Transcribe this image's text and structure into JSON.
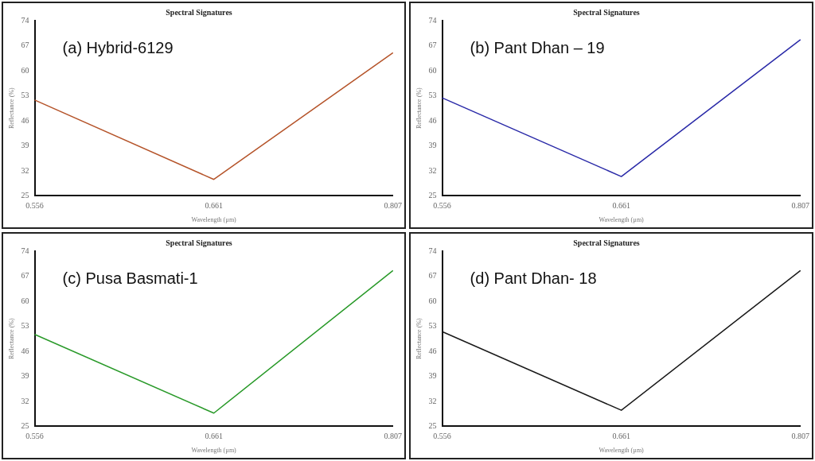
{
  "chart_data": [
    {
      "type": "line",
      "title": "Spectral Signatures",
      "xlabel": "Wavelength (µm)",
      "ylabel": "Reflectance (%)",
      "annotations": [
        "(a) Hybrid-6129"
      ],
      "categories": [
        "0.556",
        "0.661",
        "0.807"
      ],
      "series": [
        {
          "color": "#b5542a",
          "values": [
            51.8,
            29.6,
            65.0
          ]
        }
      ],
      "ylim": [
        25,
        74
      ],
      "yticks": [
        25,
        32,
        39,
        46,
        53,
        60,
        67,
        74
      ],
      "grid": false,
      "legend": false,
      "marker": "none",
      "line_style": "solid"
    },
    {
      "type": "line",
      "title": "Spectral Signatures",
      "xlabel": "Wavelength (µm)",
      "ylabel": "Reflectance (%)",
      "annotations": [
        "(b) Pant Dhan – 19"
      ],
      "categories": [
        "0.556",
        "0.661",
        "0.807"
      ],
      "series": [
        {
          "color": "#2a2aa8",
          "values": [
            52.4,
            30.4,
            68.7
          ]
        }
      ],
      "ylim": [
        25,
        74
      ],
      "yticks": [
        25,
        32,
        39,
        46,
        53,
        60,
        67,
        74
      ],
      "grid": false,
      "legend": false,
      "marker": "none",
      "line_style": "solid"
    },
    {
      "type": "line",
      "title": "Spectral Signatures",
      "xlabel": "Wavelength (µm)",
      "ylabel": "Reflectance (%)",
      "annotations": [
        "(c) Pusa Basmati-1"
      ],
      "categories": [
        "0.556",
        "0.661",
        "0.807"
      ],
      "series": [
        {
          "color": "#2a9a2a",
          "values": [
            50.7,
            28.7,
            68.6
          ]
        }
      ],
      "ylim": [
        25,
        74
      ],
      "yticks": [
        25,
        32,
        39,
        46,
        53,
        60,
        67,
        74
      ],
      "grid": false,
      "legend": false,
      "marker": "none",
      "line_style": "solid"
    },
    {
      "type": "line",
      "title": "Spectral Signatures",
      "xlabel": "Wavelength (µm)",
      "ylabel": "Reflectance (%)",
      "annotations": [
        "(d) Pant Dhan- 18"
      ],
      "categories": [
        "0.556",
        "0.661",
        "0.807"
      ],
      "series": [
        {
          "color": "#1a1a1a",
          "values": [
            51.5,
            29.5,
            68.6
          ]
        }
      ],
      "ylim": [
        25,
        74
      ],
      "yticks": [
        25,
        32,
        39,
        46,
        53,
        60,
        67,
        74
      ],
      "grid": false,
      "legend": false,
      "marker": "none",
      "line_style": "solid"
    }
  ]
}
